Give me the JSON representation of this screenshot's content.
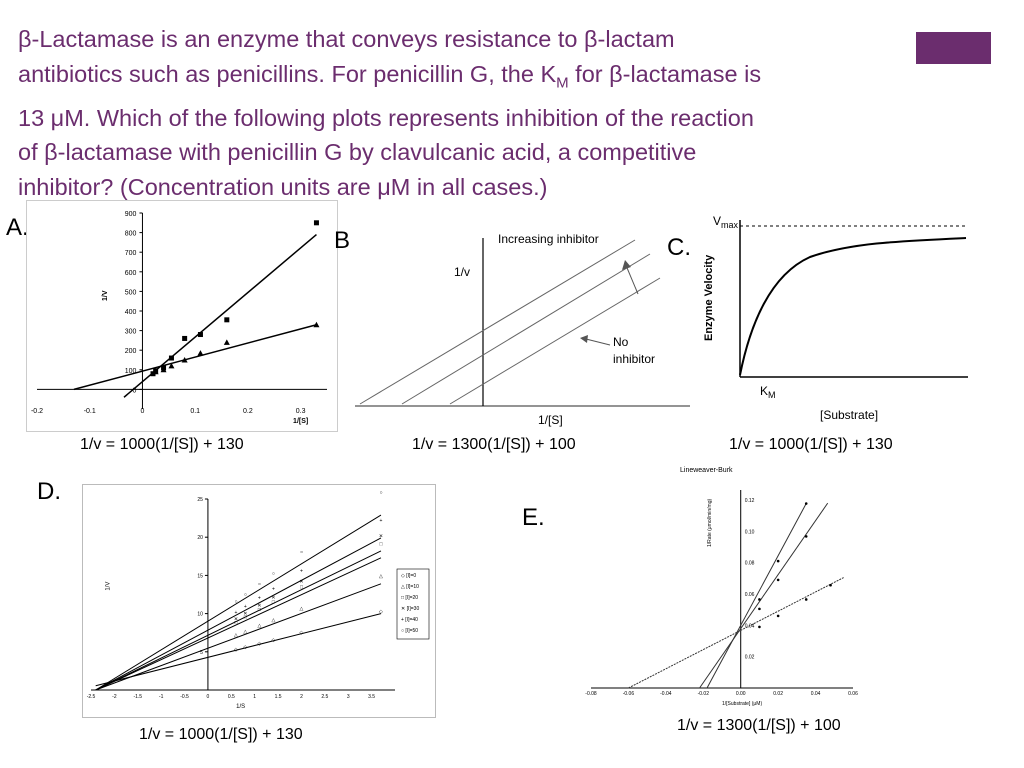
{
  "question": {
    "lines": [
      "β-Lactamase is an enzyme that conveys resistance to β-lactam",
      "antibiotics such as penicillins. For penicillin G, the K",
      "13 μM. Which of the following plots represents inhibition of the reaction",
      "of β-lactamase with penicillin G by clavulcanic acid, a competitive",
      "inhibitor?  (Concentration units are μM in all cases.)"
    ],
    "line2_sub": "M",
    "line2_rest": " for β-lactamase  is"
  },
  "options": {
    "a": {
      "label": "A.",
      "equation": "1/v = 1000(1/[S]) + 130",
      "chart_data": {
        "type": "scatter",
        "xlabel": "1/[S]",
        "ylabel": "1/V",
        "xlim": [
          -0.2,
          0.35
        ],
        "ylim": [
          -100,
          900
        ],
        "x_ticks": [
          "-0.2",
          "-0.1",
          "0",
          "0.1",
          "0.2",
          "0.3"
        ],
        "y_ticks": [
          "0",
          "100",
          "200",
          "300",
          "400",
          "500",
          "600",
          "700",
          "800",
          "900"
        ],
        "series": [
          {
            "marker": "square",
            "points": [
              [
                0.02,
                80
              ],
              [
                0.025,
                95
              ],
              [
                0.04,
                110
              ],
              [
                0.055,
                160
              ],
              [
                0.08,
                260
              ],
              [
                0.11,
                280
              ],
              [
                0.16,
                355
              ],
              [
                0.33,
                850
              ]
            ]
          },
          {
            "marker": "triangle",
            "points": [
              [
                0.025,
                90
              ],
              [
                0.04,
                100
              ],
              [
                0.055,
                120
              ],
              [
                0.08,
                150
              ],
              [
                0.11,
                185
              ],
              [
                0.16,
                240
              ],
              [
                0.33,
                330
              ]
            ]
          }
        ]
      }
    },
    "b": {
      "label": "B.",
      "equation": "1/v = 1300(1/[S]) + 100",
      "ylabel": "1/v",
      "xlabel": "1/[S]",
      "annotation_top": "Increasing inhibitor",
      "annotation_bottom_1": "No",
      "annotation_bottom_2": "inhibitor"
    },
    "c": {
      "label": "C.",
      "equation": "1/v = 1000(1/[S]) + 130",
      "vmax_label": "V",
      "vmax_sub": "max",
      "km_label": "K",
      "km_sub": "M",
      "ylabel": "Enzyme Velocity",
      "xlabel": "[Substrate]"
    },
    "d": {
      "label": "D.",
      "equation": "1/v = 1000(1/[S]) + 130",
      "chart_data": {
        "type": "line",
        "xlabel": "1/S",
        "ylabel": "1/V",
        "xlim": [
          -2.5,
          4
        ],
        "ylim": [
          0,
          25
        ],
        "x_ticks": [
          "-2.5",
          "-2",
          "-1.5",
          "-1",
          "-0.5",
          "0",
          "0.5",
          "1",
          "1.5",
          "2",
          "2.5",
          "3",
          "3.5"
        ],
        "y_ticks": [
          "5",
          "10",
          "15",
          "20",
          "25"
        ],
        "legend": [
          "[I]=0",
          "[I]=10",
          "[I]=20",
          "[I]=30",
          "[I]=40",
          "[I]=50"
        ],
        "series": [
          {
            "name": "[I]=0",
            "slope": 1.6,
            "end_y": 10.0
          },
          {
            "name": "[I]=10",
            "slope": 2.5,
            "end_y": 13.9
          },
          {
            "name": "[I]=20",
            "slope": 3.3,
            "end_y": 17.3
          },
          {
            "name": "[I]=30",
            "slope": 3.5,
            "end_y": 18.2
          },
          {
            "name": "[I]=40",
            "slope": 3.9,
            "end_y": 19.9
          },
          {
            "name": "[I]=50",
            "slope": 4.6,
            "end_y": 22.9
          }
        ]
      }
    },
    "e": {
      "label": "E.",
      "equation": "1/v = 1300(1/[S]) + 100",
      "chart_data": {
        "type": "scatter",
        "title": "Lineweaver-Burk",
        "xlabel": "1/[Substrate] (μM)",
        "ylabel": "1/Rate (μmol/min/mg)",
        "xlim": [
          -0.08,
          0.06
        ],
        "ylim": [
          0,
          0.12
        ],
        "x_ticks": [
          "-0.08",
          "-0.06",
          "-0.04",
          "-0.02",
          "0.00",
          "0.02",
          "0.04",
          "0.06"
        ],
        "y_ticks": [
          "0.02",
          "0.04",
          "0.06",
          "0.08",
          "0.10",
          "0.12"
        ],
        "series": [
          {
            "intercept_x": -0.06,
            "slope": 0.7
          },
          {
            "intercept_x": -0.022,
            "slope": 1.85
          },
          {
            "intercept_x": -0.018,
            "slope": 2.45
          }
        ]
      }
    }
  }
}
